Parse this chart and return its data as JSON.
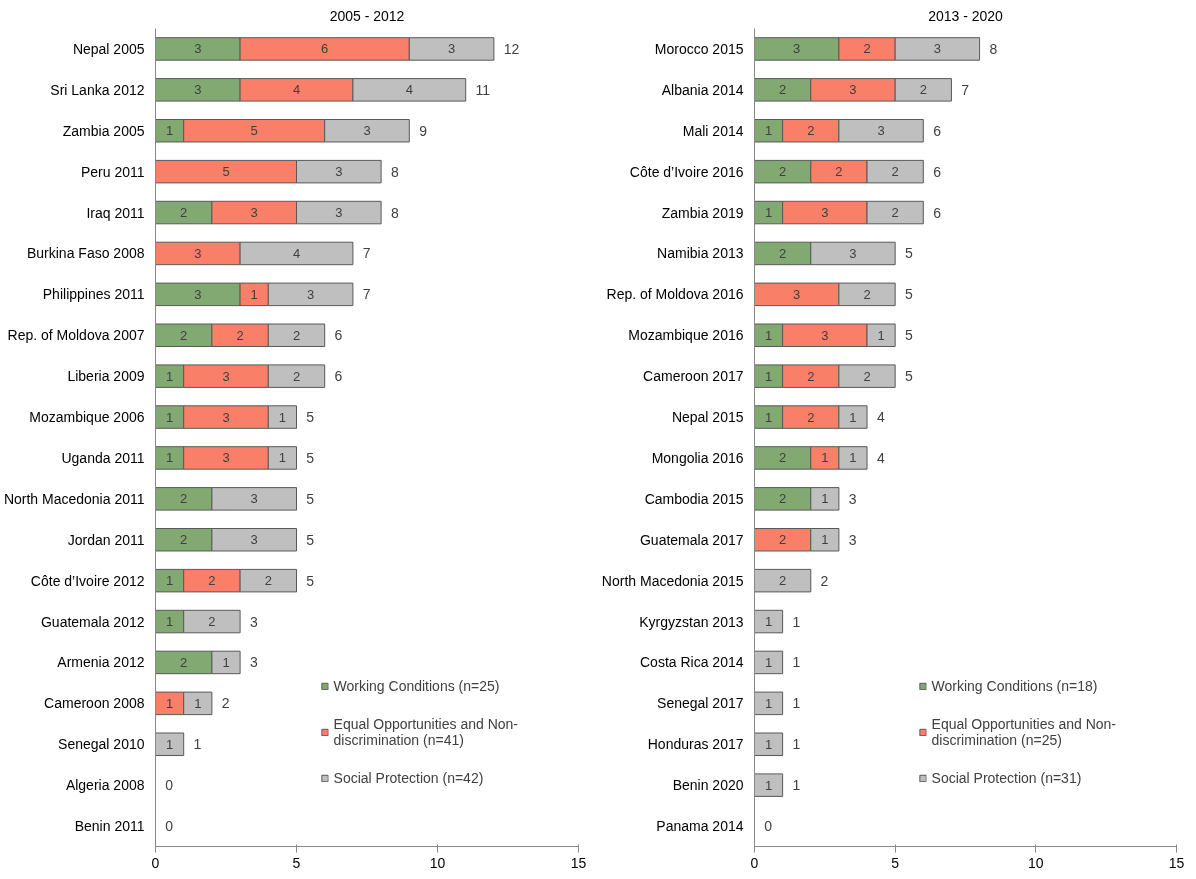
{
  "chart_data": [
    {
      "type": "bar",
      "title": "2005 - 2012",
      "orientation": "horizontal",
      "stacked": true,
      "data_labels": true,
      "legend": "bottom right",
      "grid": false,
      "categories": [
        "Nepal 2005",
        "Sri Lanka 2012",
        "Zambia 2005",
        "Peru 2011",
        "Iraq 2011",
        "Burkina Faso 2008",
        "Philippines 2011",
        "Rep. of Moldova 2007",
        "Liberia 2009",
        "Mozambique 2006",
        "Uganda 2011",
        "North Macedonia 2011",
        "Jordan 2011",
        "Côte d’Ivoire 2012",
        "Guatemala 2012",
        "Armenia 2012",
        "Cameroon 2008",
        "Senegal 2010",
        "Algeria 2008",
        "Benin 2011"
      ],
      "series": [
        {
          "name": "Working Conditions (n=25)",
          "color": "#82a972",
          "values": [
            3,
            3,
            1,
            null,
            2,
            null,
            3,
            2,
            1,
            1,
            1,
            2,
            2,
            1,
            1,
            2,
            null,
            null,
            null,
            null
          ]
        },
        {
          "name": "Equal Opportunities and Non-discrimination (n=41)",
          "color": "#fa7f68",
          "values": [
            6,
            4,
            5,
            5,
            3,
            3,
            1,
            2,
            3,
            3,
            3,
            null,
            null,
            2,
            null,
            null,
            1,
            null,
            null,
            null
          ]
        },
        {
          "name": "Social Protection (n=42)",
          "color": "#bfbfbf",
          "values": [
            3,
            4,
            3,
            3,
            3,
            4,
            3,
            2,
            2,
            1,
            1,
            3,
            3,
            2,
            2,
            1,
            1,
            1,
            null,
            null
          ]
        }
      ],
      "totals": [
        "12",
        "11",
        "9",
        "8",
        "8",
        "7",
        "7",
        "6",
        "6",
        "5",
        "5",
        "5",
        "5",
        "5",
        "3",
        "3",
        "2",
        "1",
        "0",
        "0"
      ],
      "xlim": [
        0,
        15
      ],
      "xticks": [
        0,
        5,
        10,
        15
      ]
    },
    {
      "type": "bar",
      "title": "2013 - 2020",
      "orientation": "horizontal",
      "stacked": true,
      "data_labels": true,
      "legend": "bottom right",
      "grid": false,
      "categories": [
        "Morocco 2015",
        "Albania 2014",
        "Mali 2014",
        "Côte d’Ivoire 2016",
        "Zambia 2019",
        "Namibia 2013",
        "Rep. of Moldova 2016",
        "Mozambique 2016",
        "Cameroon 2017",
        "Nepal 2015",
        "Mongolia 2016",
        "Cambodia 2015",
        "Guatemala 2017",
        "North Macedonia 2015",
        "Kyrgyzstan 2013",
        "Costa Rica 2014",
        "Senegal 2017",
        "Honduras 2017",
        "Benin 2020",
        "Panama 2014"
      ],
      "series": [
        {
          "name": "Working Conditions (n=18)",
          "color": "#82a972",
          "values": [
            3,
            2,
            1,
            2,
            1,
            2,
            null,
            1,
            1,
            1,
            2,
            2,
            null,
            null,
            null,
            null,
            null,
            null,
            null,
            null
          ]
        },
        {
          "name": "Equal Opportunities and Non-discrimination (n=25)",
          "color": "#fa7f68",
          "values": [
            2,
            3,
            2,
            2,
            3,
            null,
            3,
            3,
            2,
            2,
            1,
            null,
            2,
            null,
            null,
            null,
            null,
            null,
            null,
            null
          ]
        },
        {
          "name": "Social Protection (n=31)",
          "color": "#bfbfbf",
          "values": [
            3,
            2,
            3,
            2,
            2,
            3,
            2,
            1,
            2,
            1,
            1,
            1,
            1,
            2,
            1,
            1,
            1,
            1,
            1,
            null
          ]
        }
      ],
      "totals": [
        "8",
        "7",
        "6",
        "6",
        "6",
        "5",
        "5",
        "5",
        "5",
        "4",
        "4",
        "3",
        "3",
        "2",
        "1",
        "1",
        "1",
        "1",
        "1",
        "0"
      ],
      "xlim": [
        0,
        15
      ],
      "xticks": [
        0,
        5,
        10,
        15
      ]
    }
  ]
}
